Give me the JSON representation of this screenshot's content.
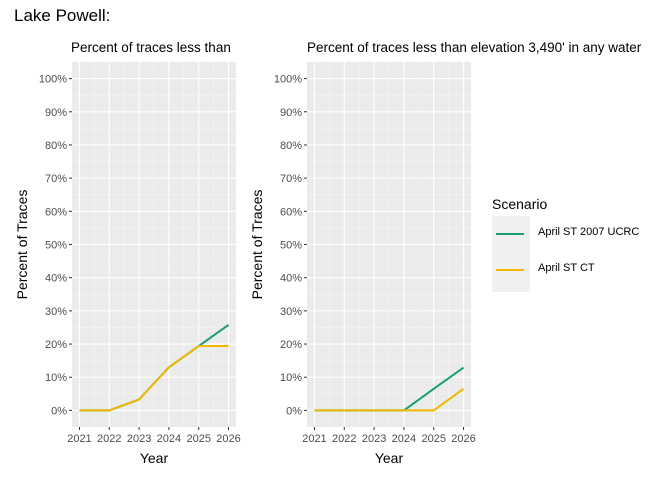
{
  "title": "Lake Powell:",
  "legend": {
    "title": "Scenario",
    "items": [
      {
        "label": "April ST 2007 UCRC",
        "color": "#1b9e77"
      },
      {
        "label": "April ST CT",
        "color": "#f0b800"
      }
    ]
  },
  "chart_data": [
    {
      "type": "line",
      "title": "Percent of traces less than",
      "xlabel": "Year",
      "ylabel": "Percent of Traces",
      "x": [
        2021,
        2022,
        2023,
        2024,
        2025,
        2026
      ],
      "xticks": [
        "2021",
        "2022",
        "2023",
        "2024",
        "2025",
        "2026"
      ],
      "yticks": [
        "0%",
        "10%",
        "20%",
        "30%",
        "40%",
        "50%",
        "60%",
        "70%",
        "80%",
        "90%",
        "100%"
      ],
      "ylim": [
        0,
        100
      ],
      "grid": true,
      "series": [
        {
          "name": "April ST 2007 UCRC",
          "color": "#1b9e77",
          "values": [
            0,
            0,
            3.3,
            13,
            19.4,
            25.8
          ]
        },
        {
          "name": "April ST CT",
          "color": "#f0b800",
          "values": [
            0,
            0,
            3.3,
            13,
            19.4,
            19.4
          ]
        }
      ]
    },
    {
      "type": "line",
      "title": "Percent of traces less than elevation 3,490' in any water",
      "xlabel": "Year",
      "ylabel": "Percent of Traces",
      "x": [
        2021,
        2022,
        2023,
        2024,
        2025,
        2026
      ],
      "xticks": [
        "2021",
        "2022",
        "2023",
        "2024",
        "2025",
        "2026"
      ],
      "yticks": [
        "0%",
        "10%",
        "20%",
        "30%",
        "40%",
        "50%",
        "60%",
        "70%",
        "80%",
        "90%",
        "100%"
      ],
      "ylim": [
        0,
        100
      ],
      "grid": true,
      "series": [
        {
          "name": "April ST 2007 UCRC",
          "color": "#1b9e77",
          "values": [
            0,
            0,
            0,
            0,
            6.5,
            12.9
          ]
        },
        {
          "name": "April ST CT",
          "color": "#f0b800",
          "values": [
            0,
            0,
            0,
            0,
            0,
            6.5
          ]
        }
      ]
    }
  ]
}
